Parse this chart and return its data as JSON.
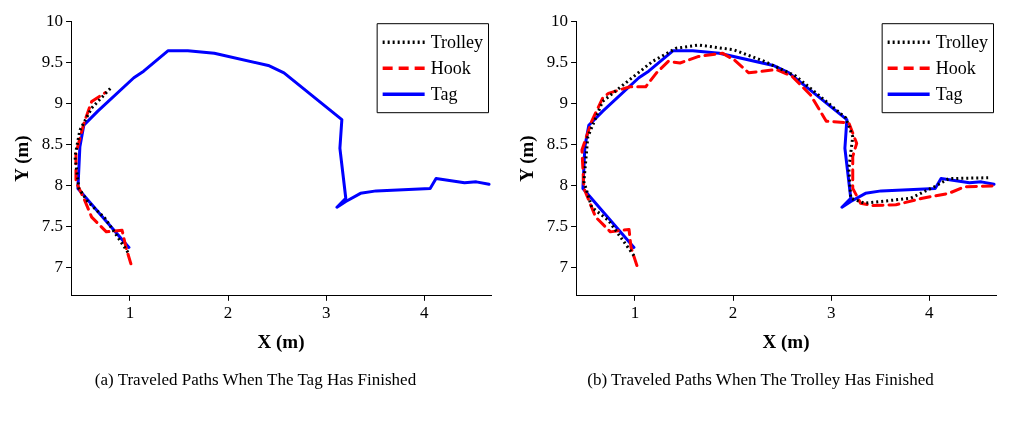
{
  "chart_data": [
    {
      "type": "line",
      "xlabel": "X (m)",
      "ylabel": "Y (m)",
      "xlim": [
        0.4,
        4.68
      ],
      "ylim": [
        6.65,
        10
      ],
      "xticks": [
        1,
        2,
        3,
        4
      ],
      "yticks": [
        7,
        7.5,
        8,
        8.5,
        9,
        9.5,
        10
      ],
      "legend": "top right",
      "marker": "none",
      "annotations": [
        "(a) Traveled Paths When The Tag Has Finished"
      ],
      "series": [
        {
          "name": "Trolley",
          "color": "#000000",
          "line_style": "dotted",
          "x": [
            0.98,
            0.75,
            0.57,
            0.48,
            0.44,
            0.49,
            0.61,
            0.8
          ],
          "values": [
            7.18,
            7.59,
            7.8,
            7.96,
            8.35,
            8.67,
            8.94,
            9.18
          ]
        },
        {
          "name": "Hook",
          "color": "#ff0000",
          "line_style": "dashed",
          "x": [
            1.01,
            0.96,
            0.92,
            0.76,
            0.61,
            0.53,
            0.45,
            0.45,
            0.53,
            0.61,
            0.75
          ],
          "values": [
            7.04,
            7.24,
            7.45,
            7.43,
            7.61,
            7.84,
            8.04,
            8.39,
            8.75,
            9.02,
            9.13
          ]
        },
        {
          "name": "Tag",
          "color": "#0000ff",
          "line_style": "solid",
          "x": [
            0.99,
            0.47,
            0.49,
            0.53,
            0.67,
            1.04,
            1.14,
            1.39,
            1.59,
            1.86,
            2.41,
            2.57,
            3.16,
            3.14,
            3.2,
            3.11,
            3.2,
            3.35,
            3.51,
            4.06,
            4.12,
            4.41,
            4.53,
            4.66
          ],
          "values": [
            7.24,
            7.96,
            8.47,
            8.73,
            8.9,
            9.31,
            9.39,
            9.64,
            9.64,
            9.61,
            9.46,
            9.37,
            8.8,
            8.45,
            7.84,
            7.73,
            7.8,
            7.9,
            7.93,
            7.96,
            8.08,
            8.03,
            8.04,
            8.01
          ]
        }
      ]
    },
    {
      "type": "line",
      "xlabel": "X (m)",
      "ylabel": "Y (m)",
      "xlim": [
        0.4,
        4.68
      ],
      "ylim": [
        6.65,
        10
      ],
      "xticks": [
        1,
        2,
        3,
        4
      ],
      "yticks": [
        7,
        7.5,
        8,
        8.5,
        9,
        9.5,
        10
      ],
      "legend": "top right",
      "marker": "none",
      "annotations": [
        "(b) Traveled Paths When The Trolley Has Finished"
      ],
      "series": [
        {
          "name": "Trolley",
          "color": "#000000",
          "line_style": "dotted",
          "x": [
            0.99,
            0.73,
            0.56,
            0.48,
            0.52,
            0.67,
            0.95,
            1.18,
            1.42,
            1.65,
            2.01,
            2.32,
            2.64,
            2.87,
            3.15,
            3.22,
            3.18,
            3.2,
            3.34,
            3.5,
            3.81,
            4.05,
            4.2,
            4.6
          ],
          "values": [
            7.14,
            7.57,
            7.73,
            8.04,
            8.59,
            9.02,
            9.29,
            9.51,
            9.67,
            9.71,
            9.65,
            9.51,
            9.33,
            9.1,
            8.82,
            8.59,
            8.2,
            7.84,
            7.78,
            7.8,
            7.84,
            7.98,
            8.08,
            8.09
          ]
        },
        {
          "name": "Hook",
          "color": "#ff0000",
          "line_style": "dashed",
          "x": [
            1.02,
            0.96,
            0.94,
            0.75,
            0.6,
            0.48,
            0.46,
            0.56,
            0.67,
            0.73,
            0.95,
            1.11,
            1.22,
            1.34,
            1.46,
            1.65,
            1.89,
            2.01,
            2.16,
            2.44,
            2.6,
            2.79,
            2.95,
            3.18,
            3.26,
            3.22,
            3.22,
            3.3,
            3.42,
            3.66,
            3.93,
            4.2,
            4.36,
            4.64
          ],
          "values": [
            7.02,
            7.24,
            7.46,
            7.43,
            7.61,
            7.96,
            8.43,
            8.78,
            9.06,
            9.12,
            9.2,
            9.2,
            9.37,
            9.51,
            9.49,
            9.57,
            9.61,
            9.53,
            9.37,
            9.41,
            9.33,
            9.1,
            8.78,
            8.76,
            8.51,
            8.35,
            7.96,
            7.78,
            7.75,
            7.76,
            7.84,
            7.9,
            7.98,
            7.99
          ]
        },
        {
          "name": "Tag",
          "color": "#0000ff",
          "line_style": "solid",
          "x": [
            0.99,
            0.47,
            0.49,
            0.53,
            0.67,
            1.04,
            1.14,
            1.39,
            1.59,
            1.86,
            2.41,
            2.57,
            3.16,
            3.14,
            3.2,
            3.11,
            3.2,
            3.35,
            3.51,
            4.06,
            4.12,
            4.41,
            4.53,
            4.66
          ],
          "values": [
            7.24,
            7.96,
            8.47,
            8.73,
            8.9,
            9.31,
            9.39,
            9.64,
            9.64,
            9.61,
            9.46,
            9.37,
            8.8,
            8.45,
            7.84,
            7.73,
            7.8,
            7.9,
            7.93,
            7.96,
            8.08,
            8.03,
            8.04,
            8.01
          ]
        }
      ]
    }
  ]
}
